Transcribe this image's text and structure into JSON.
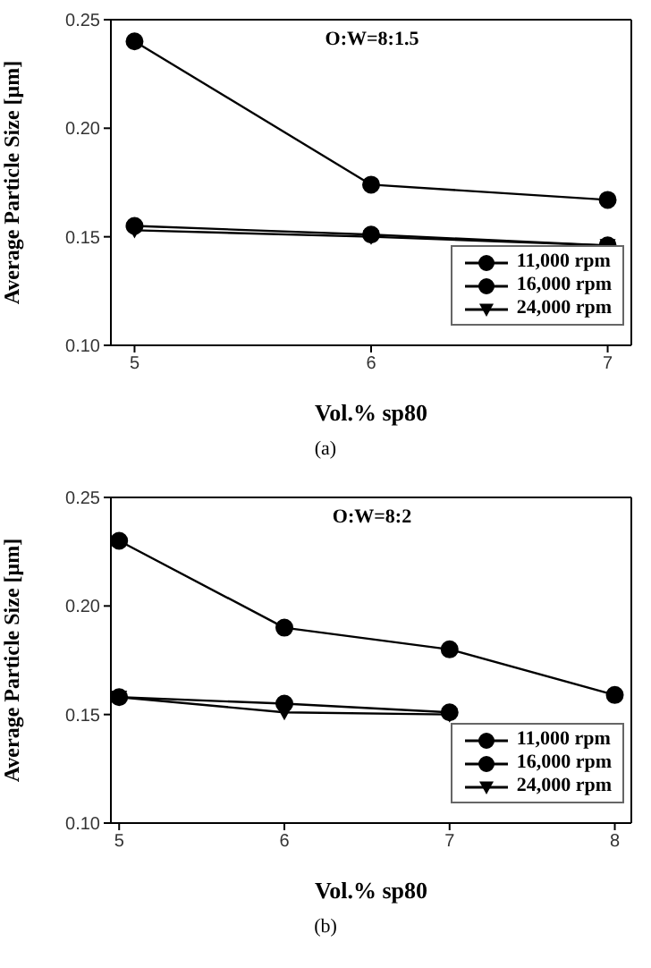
{
  "chart_data": [
    {
      "type": "line",
      "xlabel": "Vol.% sp80",
      "ylabel": "Average Particle Size [μm]",
      "annotations": [
        "O:W=8:1.5",
        "(a)"
      ],
      "x": [
        5,
        6,
        7
      ],
      "xlim": [
        4.9,
        7.1
      ],
      "xticks": [
        5,
        6,
        7
      ],
      "ylim": [
        0.1,
        0.25
      ],
      "yticks": [
        {
          "value": 0.1,
          "label": "0.10"
        },
        {
          "value": 0.15,
          "label": "0.15"
        },
        {
          "value": 0.2,
          "label": "0.20"
        },
        {
          "value": 0.25,
          "label": "0.25"
        }
      ],
      "grid": false,
      "legend": "bottom right",
      "line_style": "solid",
      "series": [
        {
          "name": "11,000 rpm",
          "color": "#000000",
          "marker": "circle",
          "values": [
            0.24,
            0.174,
            0.167
          ]
        },
        {
          "name": "16,000 rpm",
          "color": "#000000",
          "marker": "circle",
          "values": [
            0.155,
            0.151,
            0.146
          ]
        },
        {
          "name": "24,000 rpm",
          "color": "#000000",
          "marker": "triangle",
          "values": [
            0.153,
            0.15,
            0.146
          ]
        }
      ]
    },
    {
      "type": "line",
      "xlabel": "Vol.% sp80",
      "ylabel": "Average Particle Size [μm]",
      "annotations": [
        "O:W=8:2",
        "(b)"
      ],
      "x": [
        5,
        6,
        7,
        8
      ],
      "xlim": [
        4.95,
        8.1
      ],
      "xticks": [
        5,
        6,
        7,
        8
      ],
      "ylim": [
        0.1,
        0.25
      ],
      "yticks": [
        {
          "value": 0.1,
          "label": "0.10"
        },
        {
          "value": 0.15,
          "label": "0.15"
        },
        {
          "value": 0.2,
          "label": "0.20"
        },
        {
          "value": 0.25,
          "label": "0.25"
        }
      ],
      "grid": false,
      "legend": "bottom right",
      "line_style": "solid",
      "series": [
        {
          "name": "11,000 rpm",
          "color": "#000000",
          "marker": "circle",
          "values": [
            0.23,
            0.19,
            0.18,
            0.159
          ]
        },
        {
          "name": "16,000 rpm",
          "color": "#000000",
          "marker": "circle",
          "values": [
            0.158,
            0.155,
            0.151,
            null
          ]
        },
        {
          "name": "24,000 rpm",
          "color": "#000000",
          "marker": "triangle",
          "values": [
            0.158,
            0.151,
            0.15,
            null
          ]
        }
      ]
    }
  ]
}
